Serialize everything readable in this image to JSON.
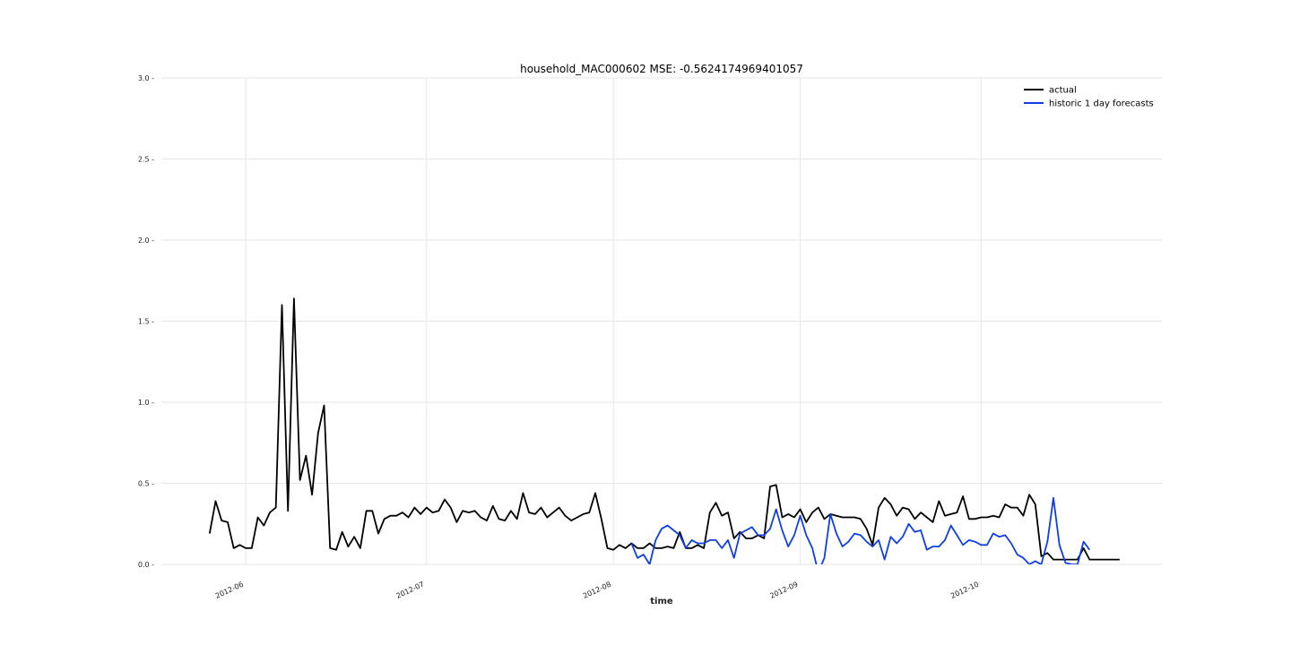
{
  "chart_data": {
    "type": "line",
    "title": "household_MAC000602 MSE: -0.5624174969401057",
    "xlabel": "time",
    "ylabel": "",
    "ylim": [
      0,
      3.0
    ],
    "yticks": [
      "0.0",
      "0.5",
      "1.0",
      "1.5",
      "2.0",
      "2.5",
      "3.0"
    ],
    "xlim": [
      "2012-05-18",
      "2012-10-31"
    ],
    "xticks": [
      {
        "label": "2012-06",
        "date": "2012-06-01"
      },
      {
        "label": "2012-07",
        "date": "2012-07-01"
      },
      {
        "label": "2012-08",
        "date": "2012-08-01"
      },
      {
        "label": "2012-09",
        "date": "2012-09-01"
      },
      {
        "label": "2012-10",
        "date": "2012-10-01"
      }
    ],
    "grid": true,
    "legend": "top-right",
    "series": [
      {
        "name": "actual",
        "color": "#000000",
        "start": "2012-05-26",
        "step_days": 1,
        "values": [
          0.19,
          0.39,
          0.27,
          0.26,
          0.1,
          0.12,
          0.1,
          0.1,
          0.29,
          0.24,
          0.32,
          0.35,
          1.6,
          0.33,
          1.64,
          0.52,
          0.67,
          0.43,
          0.81,
          0.98,
          0.1,
          0.09,
          0.2,
          0.11,
          0.17,
          0.1,
          0.33,
          0.33,
          0.19,
          0.28,
          0.3,
          0.3,
          0.32,
          0.29,
          0.35,
          0.31,
          0.35,
          0.32,
          0.33,
          0.4,
          0.35,
          0.26,
          0.33,
          0.32,
          0.33,
          0.29,
          0.27,
          0.36,
          0.28,
          0.27,
          0.33,
          0.28,
          0.44,
          0.32,
          0.31,
          0.35,
          0.29,
          0.32,
          0.35,
          0.3,
          0.27,
          0.29,
          0.31,
          0.32,
          0.44,
          0.28,
          0.1,
          0.09,
          0.12,
          0.1,
          0.13,
          0.1,
          0.1,
          0.13,
          0.1,
          0.1,
          0.11,
          0.1,
          0.2,
          0.1,
          0.1,
          0.12,
          0.1,
          0.32,
          0.38,
          0.3,
          0.32,
          0.16,
          0.2,
          0.16,
          0.16,
          0.18,
          0.16,
          0.48,
          0.49,
          0.29,
          0.31,
          0.29,
          0.34,
          0.26,
          0.32,
          0.35,
          0.28,
          0.31,
          0.3,
          0.29,
          0.29,
          0.29,
          0.28,
          0.22,
          0.12,
          0.35,
          0.41,
          0.37,
          0.3,
          0.35,
          0.34,
          0.28,
          0.32,
          0.29,
          0.26,
          0.39,
          0.3,
          0.31,
          0.32,
          0.42,
          0.28,
          0.28,
          0.29,
          0.29,
          0.3,
          0.29,
          0.37,
          0.35,
          0.35,
          0.3,
          0.43,
          0.37,
          0.05,
          0.07,
          0.03,
          0.03,
          0.03,
          0.03,
          0.03,
          0.1,
          0.03,
          0.03,
          0.03,
          0.03,
          0.03,
          0.03
        ]
      },
      {
        "name": "historic 1 day forecasts",
        "color": "#0f3fe0",
        "start": "2012-08-04",
        "step_days": 1,
        "values": [
          0.13,
          0.04,
          0.06,
          0.0,
          0.15,
          0.22,
          0.24,
          0.21,
          0.18,
          0.1,
          0.15,
          0.13,
          0.13,
          0.15,
          0.15,
          0.1,
          0.15,
          0.04,
          0.19,
          0.21,
          0.23,
          0.18,
          0.18,
          0.22,
          0.34,
          0.21,
          0.11,
          0.18,
          0.3,
          0.18,
          0.1,
          -0.05,
          0.04,
          0.31,
          0.19,
          0.11,
          0.14,
          0.19,
          0.18,
          0.14,
          0.11,
          0.15,
          0.03,
          0.17,
          0.13,
          0.17,
          0.25,
          0.2,
          0.21,
          0.09,
          0.11,
          0.11,
          0.15,
          0.24,
          0.18,
          0.12,
          0.15,
          0.14,
          0.12,
          0.12,
          0.19,
          0.17,
          0.18,
          0.13,
          0.06,
          0.04,
          0.0,
          0.02,
          0.0,
          0.14,
          0.41,
          0.12,
          0.01,
          0.0,
          0.0,
          0.14,
          0.09
        ]
      }
    ]
  }
}
